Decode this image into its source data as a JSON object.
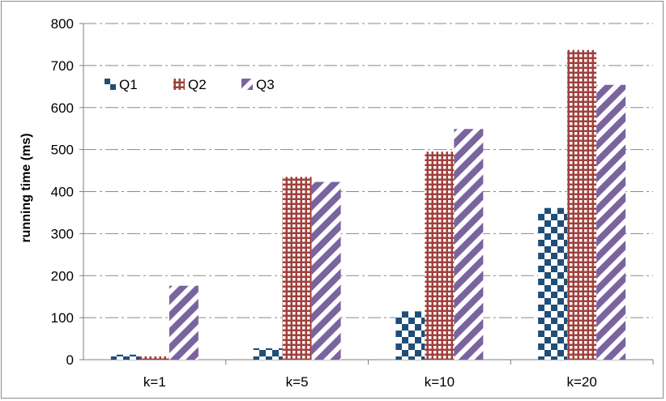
{
  "chart_data": {
    "type": "bar",
    "title": "",
    "xlabel": "",
    "ylabel": "running time (ms)",
    "categories": [
      "k=1",
      "k=5",
      "k=10",
      "k=20"
    ],
    "series": [
      {
        "name": "Q1",
        "values": [
          12,
          27,
          115,
          361
        ],
        "color": "#1f4e79",
        "pattern": "checker"
      },
      {
        "name": "Q2",
        "values": [
          8,
          435,
          495,
          737
        ],
        "color": "#a0403c",
        "pattern": "grid"
      },
      {
        "name": "Q3",
        "values": [
          176,
          423,
          549,
          654
        ],
        "color": "#7b63a0",
        "pattern": "diagonal"
      }
    ],
    "ylim": [
      0,
      800
    ],
    "yticks": [
      0,
      100,
      200,
      300,
      400,
      500,
      600,
      700,
      800
    ],
    "grid": true,
    "grid_style": "dash-dot",
    "legend_position": "top-left"
  }
}
